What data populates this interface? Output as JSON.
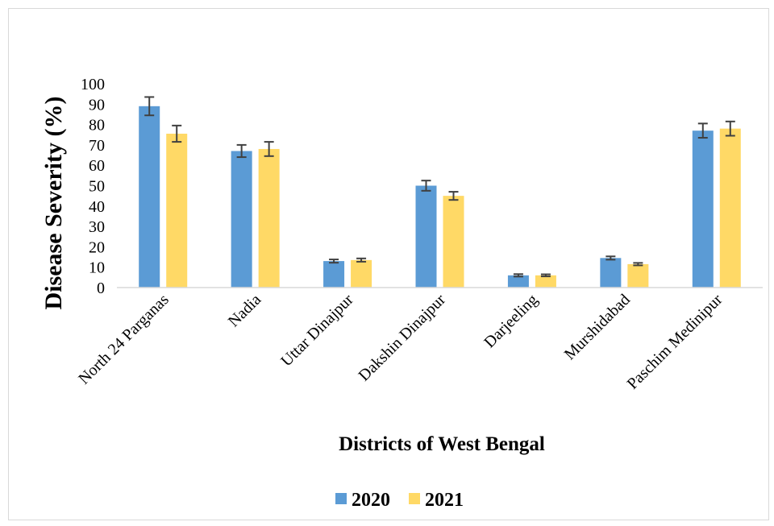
{
  "chart_data": {
    "type": "bar",
    "xlabel": "Districts of West Bengal",
    "ylabel": "Disease Severity    (%)",
    "ylim": [
      0,
      100
    ],
    "yticks": [
      0,
      10,
      20,
      30,
      40,
      50,
      60,
      70,
      80,
      90,
      100
    ],
    "categories": [
      "North 24 Parganas",
      "Nadia",
      "Uttar Dinajpur",
      "Dakshin Dinajpur",
      "Darjeeling",
      "Murshidabad",
      "Paschim Medinipur"
    ],
    "series": [
      {
        "name": "2020",
        "color": "#5b9bd5",
        "values": [
          89,
          67,
          13,
          50,
          6,
          14.5,
          77
        ],
        "errors": [
          4.5,
          3,
          0.8,
          2.5,
          0.6,
          0.8,
          3.5
        ]
      },
      {
        "name": "2021",
        "color": "#ffd966",
        "values": [
          75.5,
          68,
          13.5,
          45,
          6,
          11.5,
          78
        ],
        "errors": [
          4,
          3.5,
          0.8,
          2,
          0.5,
          0.6,
          3.5
        ]
      }
    ],
    "error_bar_color": "#404040",
    "grid": false,
    "legend_position": "bottom"
  }
}
